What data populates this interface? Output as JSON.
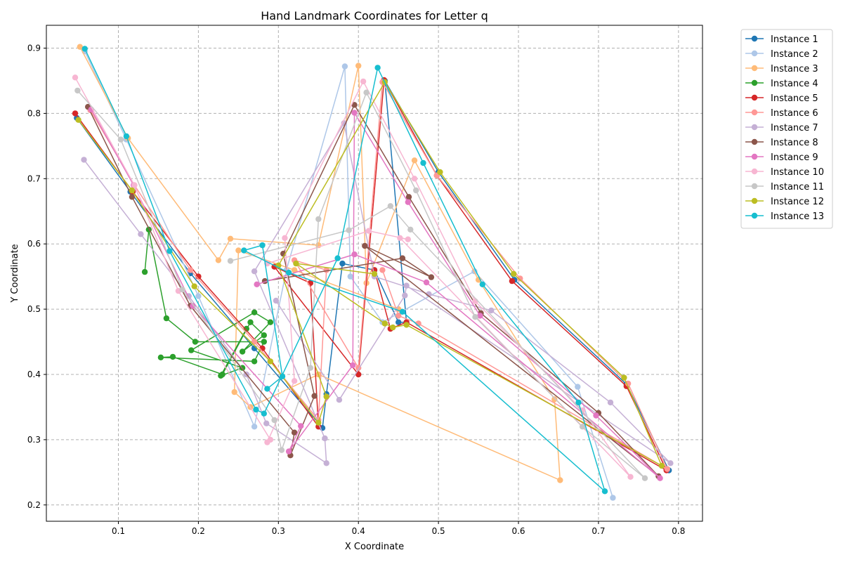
{
  "chart_data": {
    "type": "line",
    "title": "Hand Landmark Coordinates for Letter q",
    "xlabel": "X Coordinate",
    "ylabel": "Y Coordinate",
    "xlim": [
      0.01,
      0.83
    ],
    "ylim": [
      0.175,
      0.935
    ],
    "xticks": [
      "0.1",
      "0.2",
      "0.3",
      "0.4",
      "0.5",
      "0.6",
      "0.7",
      "0.8"
    ],
    "yticks": [
      "0.2",
      "0.3",
      "0.4",
      "0.5",
      "0.6",
      "0.7",
      "0.8",
      "0.9"
    ],
    "grid": true,
    "legend_position": "outside-right",
    "series": [
      {
        "name": "Instance 1",
        "color": "#1f77b4",
        "points": [
          [
            0.048,
            0.793
          ],
          [
            0.115,
            0.68
          ],
          [
            0.19,
            0.555
          ],
          [
            0.27,
            0.44
          ],
          [
            0.355,
            0.318
          ],
          [
            0.36,
            0.37
          ],
          [
            0.38,
            0.57
          ],
          [
            0.42,
            0.56
          ],
          [
            0.45,
            0.48
          ],
          [
            0.46,
            0.48
          ],
          [
            0.433,
            0.85
          ],
          [
            0.5,
            0.71
          ],
          [
            0.595,
            0.545
          ],
          [
            0.735,
            0.385
          ],
          [
            0.788,
            0.253
          ]
        ]
      },
      {
        "name": "Instance 2",
        "color": "#aec7e8",
        "points": [
          [
            0.058,
            0.895
          ],
          [
            0.11,
            0.76
          ],
          [
            0.2,
            0.52
          ],
          [
            0.27,
            0.32
          ],
          [
            0.31,
            0.56
          ],
          [
            0.383,
            0.872
          ],
          [
            0.39,
            0.55
          ],
          [
            0.43,
            0.48
          ],
          [
            0.545,
            0.558
          ],
          [
            0.674,
            0.381
          ],
          [
            0.718,
            0.211
          ]
        ]
      },
      {
        "name": "Instance 3",
        "color": "#ffbb78",
        "points": [
          [
            0.052,
            0.902
          ],
          [
            0.112,
            0.762
          ],
          [
            0.225,
            0.575
          ],
          [
            0.24,
            0.608
          ],
          [
            0.35,
            0.598
          ],
          [
            0.4,
            0.873
          ],
          [
            0.41,
            0.54
          ],
          [
            0.47,
            0.728
          ],
          [
            0.55,
            0.545
          ],
          [
            0.645,
            0.362
          ],
          [
            0.652,
            0.238
          ],
          [
            0.35,
            0.4
          ],
          [
            0.265,
            0.35
          ],
          [
            0.245,
            0.373
          ],
          [
            0.25,
            0.59
          ],
          [
            0.32,
            0.56
          ],
          [
            0.45,
            0.5
          ]
        ]
      },
      {
        "name": "Instance 4",
        "color": "#2ca02c",
        "points": [
          [
            0.133,
            0.557
          ],
          [
            0.138,
            0.622
          ],
          [
            0.16,
            0.486
          ],
          [
            0.196,
            0.45
          ],
          [
            0.282,
            0.45
          ],
          [
            0.27,
            0.42
          ],
          [
            0.153,
            0.426
          ],
          [
            0.168,
            0.427
          ],
          [
            0.23,
            0.4
          ],
          [
            0.265,
            0.48
          ],
          [
            0.282,
            0.46
          ],
          [
            0.255,
            0.435
          ],
          [
            0.29,
            0.48
          ],
          [
            0.27,
            0.495
          ],
          [
            0.191,
            0.437
          ],
          [
            0.255,
            0.41
          ],
          [
            0.228,
            0.398
          ],
          [
            0.26,
            0.47
          ]
        ]
      },
      {
        "name": "Instance 5",
        "color": "#d62728",
        "points": [
          [
            0.046,
            0.8
          ],
          [
            0.118,
            0.68
          ],
          [
            0.2,
            0.55
          ],
          [
            0.28,
            0.44
          ],
          [
            0.35,
            0.32
          ],
          [
            0.34,
            0.54
          ],
          [
            0.295,
            0.565
          ],
          [
            0.4,
            0.4
          ],
          [
            0.432,
            0.851
          ],
          [
            0.498,
            0.705
          ],
          [
            0.592,
            0.543
          ],
          [
            0.735,
            0.382
          ],
          [
            0.785,
            0.253
          ],
          [
            0.46,
            0.48
          ],
          [
            0.44,
            0.47
          ],
          [
            0.42,
            0.56
          ]
        ]
      },
      {
        "name": "Instance 6",
        "color": "#ff9896",
        "points": [
          [
            0.065,
            0.805
          ],
          [
            0.12,
            0.69
          ],
          [
            0.19,
            0.56
          ],
          [
            0.27,
            0.45
          ],
          [
            0.35,
            0.33
          ],
          [
            0.36,
            0.56
          ],
          [
            0.32,
            0.575
          ],
          [
            0.4,
            0.41
          ],
          [
            0.43,
            0.848
          ],
          [
            0.498,
            0.705
          ],
          [
            0.602,
            0.547
          ],
          [
            0.737,
            0.386
          ],
          [
            0.786,
            0.255
          ],
          [
            0.475,
            0.478
          ],
          [
            0.45,
            0.49
          ],
          [
            0.43,
            0.56
          ]
        ]
      },
      {
        "name": "Instance 7",
        "color": "#c5b0d5",
        "points": [
          [
            0.057,
            0.729
          ],
          [
            0.128,
            0.615
          ],
          [
            0.188,
            0.52
          ],
          [
            0.26,
            0.4
          ],
          [
            0.285,
            0.325
          ],
          [
            0.36,
            0.264
          ],
          [
            0.358,
            0.302
          ],
          [
            0.27,
            0.558
          ],
          [
            0.382,
            0.785
          ],
          [
            0.42,
            0.55
          ],
          [
            0.488,
            0.523
          ],
          [
            0.566,
            0.498
          ],
          [
            0.715,
            0.357
          ],
          [
            0.79,
            0.264
          ],
          [
            0.46,
            0.536
          ],
          [
            0.458,
            0.521
          ],
          [
            0.376,
            0.361
          ],
          [
            0.297,
            0.513
          ]
        ]
      },
      {
        "name": "Instance 8",
        "color": "#8c564b",
        "points": [
          [
            0.062,
            0.81
          ],
          [
            0.117,
            0.672
          ],
          [
            0.19,
            0.505
          ],
          [
            0.32,
            0.311
          ],
          [
            0.315,
            0.276
          ],
          [
            0.345,
            0.367
          ],
          [
            0.306,
            0.585
          ],
          [
            0.395,
            0.813
          ],
          [
            0.463,
            0.672
          ],
          [
            0.553,
            0.494
          ],
          [
            0.7,
            0.341
          ],
          [
            0.775,
            0.244
          ],
          [
            0.408,
            0.597
          ],
          [
            0.491,
            0.549
          ],
          [
            0.455,
            0.578
          ],
          [
            0.283,
            0.543
          ]
        ]
      },
      {
        "name": "Instance 9",
        "color": "#e377c2",
        "points": [
          [
            0.066,
            0.806
          ],
          [
            0.119,
            0.69
          ],
          [
            0.193,
            0.505
          ],
          [
            0.328,
            0.321
          ],
          [
            0.313,
            0.282
          ],
          [
            0.393,
            0.414
          ],
          [
            0.395,
            0.801
          ],
          [
            0.462,
            0.664
          ],
          [
            0.552,
            0.49
          ],
          [
            0.697,
            0.337
          ],
          [
            0.777,
            0.241
          ],
          [
            0.485,
            0.541
          ],
          [
            0.395,
            0.584
          ],
          [
            0.273,
            0.538
          ]
        ]
      },
      {
        "name": "Instance 10",
        "color": "#f7b6d2",
        "points": [
          [
            0.046,
            0.855
          ],
          [
            0.12,
            0.69
          ],
          [
            0.175,
            0.528
          ],
          [
            0.29,
            0.3
          ],
          [
            0.286,
            0.296
          ],
          [
            0.32,
            0.39
          ],
          [
            0.308,
            0.609
          ],
          [
            0.406,
            0.849
          ],
          [
            0.47,
            0.7
          ],
          [
            0.546,
            0.512
          ],
          [
            0.68,
            0.345
          ],
          [
            0.74,
            0.243
          ],
          [
            0.452,
            0.609
          ],
          [
            0.462,
            0.607
          ],
          [
            0.413,
            0.62
          ],
          [
            0.286,
            0.57
          ]
        ]
      },
      {
        "name": "Instance 11",
        "color": "#c7c7c7",
        "points": [
          [
            0.049,
            0.835
          ],
          [
            0.103,
            0.76
          ],
          [
            0.18,
            0.53
          ],
          [
            0.295,
            0.33
          ],
          [
            0.304,
            0.284
          ],
          [
            0.34,
            0.41
          ],
          [
            0.35,
            0.638
          ],
          [
            0.41,
            0.832
          ],
          [
            0.472,
            0.682
          ],
          [
            0.546,
            0.488
          ],
          [
            0.68,
            0.32
          ],
          [
            0.758,
            0.241
          ],
          [
            0.465,
            0.622
          ],
          [
            0.44,
            0.658
          ],
          [
            0.388,
            0.621
          ],
          [
            0.24,
            0.574
          ]
        ]
      },
      {
        "name": "Instance 12",
        "color": "#bcbd22",
        "points": [
          [
            0.05,
            0.79
          ],
          [
            0.117,
            0.682
          ],
          [
            0.195,
            0.535
          ],
          [
            0.29,
            0.42
          ],
          [
            0.35,
            0.326
          ],
          [
            0.36,
            0.366
          ],
          [
            0.3,
            0.567
          ],
          [
            0.433,
            0.848
          ],
          [
            0.502,
            0.71
          ],
          [
            0.594,
            0.554
          ],
          [
            0.732,
            0.395
          ],
          [
            0.779,
            0.26
          ],
          [
            0.46,
            0.476
          ],
          [
            0.443,
            0.472
          ],
          [
            0.433,
            0.478
          ],
          [
            0.322,
            0.57
          ],
          [
            0.42,
            0.554
          ]
        ]
      },
      {
        "name": "Instance 13",
        "color": "#17becf",
        "points": [
          [
            0.058,
            0.899
          ],
          [
            0.11,
            0.765
          ],
          [
            0.164,
            0.589
          ],
          [
            0.272,
            0.346
          ],
          [
            0.282,
            0.34
          ],
          [
            0.374,
            0.578
          ],
          [
            0.424,
            0.87
          ],
          [
            0.481,
            0.724
          ],
          [
            0.555,
            0.538
          ],
          [
            0.675,
            0.357
          ],
          [
            0.708,
            0.221
          ],
          [
            0.455,
            0.496
          ],
          [
            0.313,
            0.556
          ],
          [
            0.257,
            0.59
          ],
          [
            0.28,
            0.598
          ],
          [
            0.305,
            0.397
          ],
          [
            0.286,
            0.378
          ]
        ]
      }
    ]
  }
}
